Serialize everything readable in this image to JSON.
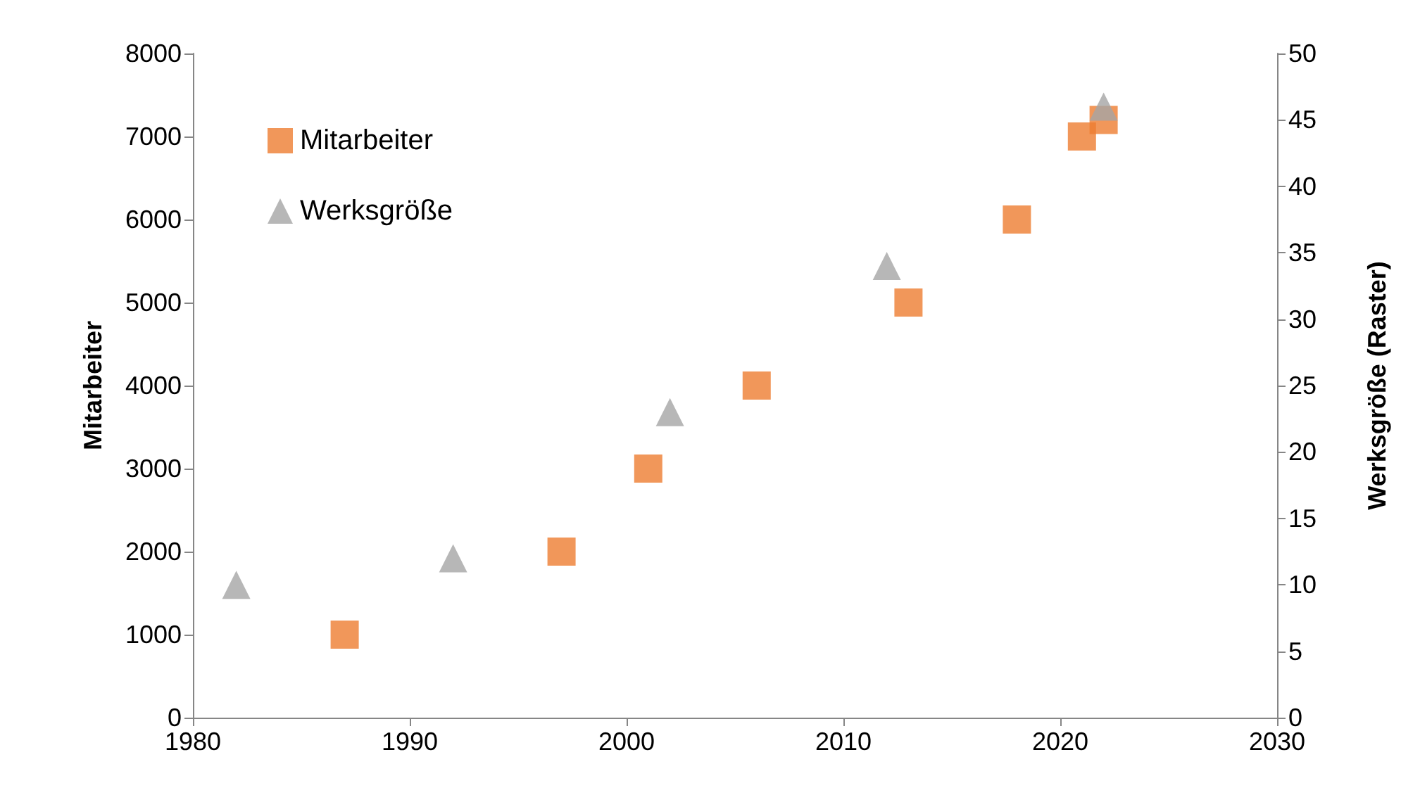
{
  "chart_data": {
    "type": "scatter",
    "ylabel": "Mitarbeiter",
    "y2label": "Werksgröße (Raster)",
    "xlim": [
      1980,
      2030
    ],
    "xticks": [
      1980,
      1990,
      2000,
      2010,
      2020,
      2030
    ],
    "ylim": [
      0,
      8000
    ],
    "yticks": [
      0,
      1000,
      2000,
      3000,
      4000,
      5000,
      6000,
      7000,
      8000
    ],
    "y2lim": [
      0,
      50
    ],
    "y2ticks": [
      0,
      5,
      10,
      15,
      20,
      25,
      30,
      35,
      40,
      45,
      50
    ],
    "grid": false,
    "legend": "top left",
    "series": [
      {
        "name": "Mitarbeiter",
        "color": "#ed7d31",
        "marker": "square",
        "x": [
          1987,
          1997,
          2001,
          2006,
          2013,
          2018,
          2021,
          2022
        ],
        "values": [
          1000,
          2000,
          3000,
          4000,
          5000,
          6000,
          7000,
          7200
        ]
      },
      {
        "name": "Werksgröße",
        "color": "#a5a5a5",
        "marker": "triangle",
        "axis": "y2",
        "x": [
          1982,
          1992,
          2002,
          2012,
          2022
        ],
        "values": [
          10,
          12,
          23,
          34,
          46
        ]
      }
    ]
  }
}
